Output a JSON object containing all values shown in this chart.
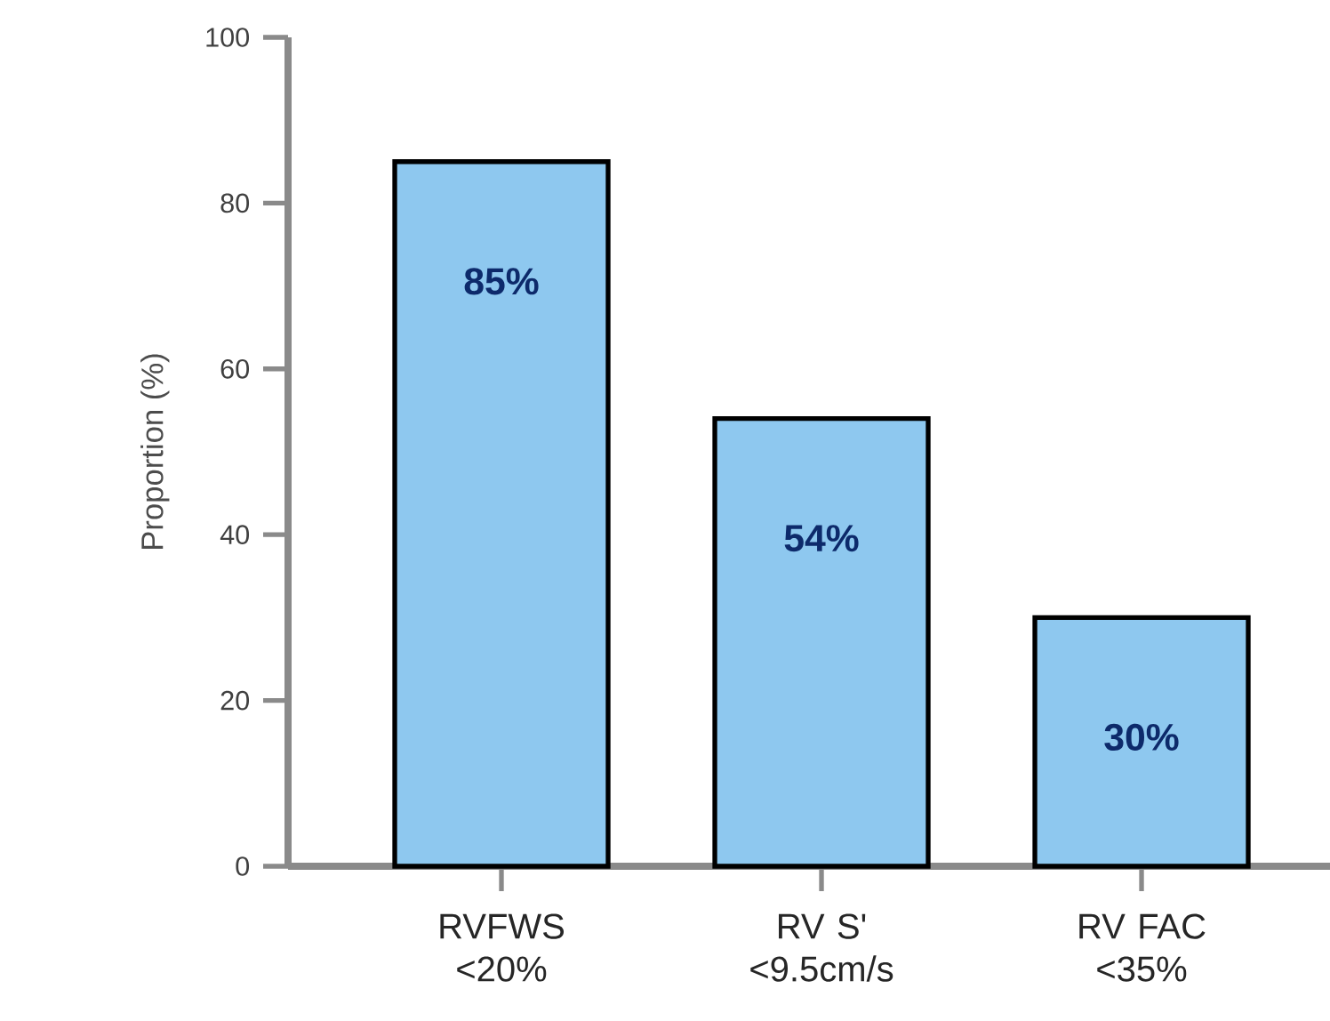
{
  "chart_data": {
    "type": "bar",
    "ylabel": "Proportion (%)",
    "categories": [
      "RVFWS <20%",
      "RV S' <9.5cm/s",
      "RV FAC <35%"
    ],
    "values": [
      85,
      54,
      30
    ],
    "value_labels": [
      "85%",
      "54%",
      "30%"
    ],
    "color": "#8ec8ef",
    "ylim": [
      0,
      100
    ],
    "yticks": [
      0,
      20,
      40,
      60,
      80,
      100
    ]
  }
}
